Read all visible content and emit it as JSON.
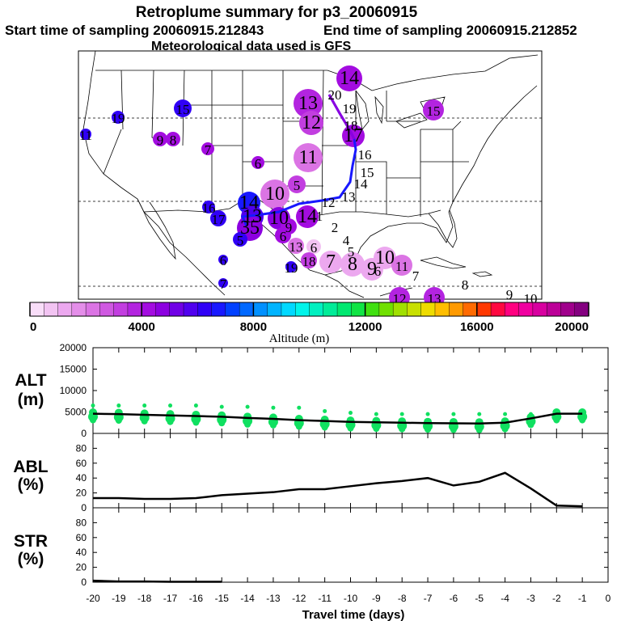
{
  "header": {
    "title": "Retroplume summary for p3_20060915",
    "start_time": "Start time of sampling 20060915.212843",
    "end_time": "End time of sampling 20060915.212852",
    "met_data": "Meteorological data used is GFS"
  },
  "colorbar": {
    "label": "Altitude (m)",
    "ticks": [
      "0",
      "4000",
      "8000",
      "12000",
      "16000",
      "20000"
    ],
    "colors": [
      "#f8ddf8",
      "#f2c3f2",
      "#eca8ef",
      "#e48ee9",
      "#db74e4",
      "#cf59e1",
      "#c23ee0",
      "#b324e0",
      "#a30ce0",
      "#8c00e0",
      "#7000e6",
      "#5000ee",
      "#3000f6",
      "#1818ff",
      "#0040ff",
      "#0068ff",
      "#0090ff",
      "#00b4ff",
      "#00d8ff",
      "#00f4ea",
      "#00f0c0",
      "#00ec98",
      "#00e870",
      "#10e444",
      "#40e010",
      "#70e000",
      "#a0e000",
      "#c8e000",
      "#eedc00",
      "#ffbe00",
      "#ff9a00",
      "#ff6a00",
      "#ff3800",
      "#ff0840",
      "#ff0080",
      "#f000a0",
      "#d800a0",
      "#bc0098",
      "#a0008c",
      "#840080"
    ]
  },
  "map": {
    "labels": [
      {
        "t": "14",
        "x": 432,
        "y": 97,
        "r": 16,
        "c": "#a30ce0"
      },
      {
        "t": "20",
        "x": 414,
        "y": 116,
        "r": 0,
        "c": "#a30ce0"
      },
      {
        "t": "13",
        "x": 381,
        "y": 128,
        "r": 18,
        "c": "#b324e0"
      },
      {
        "t": "19",
        "x": 432,
        "y": 133,
        "r": 0,
        "c": "#b324e0"
      },
      {
        "t": "15",
        "x": 536,
        "y": 136,
        "r": 13,
        "c": "#b324e0"
      },
      {
        "t": "15",
        "x": 226,
        "y": 134,
        "r": 11,
        "c": "#3000f6"
      },
      {
        "t": "19",
        "x": 146,
        "y": 145,
        "r": 8,
        "c": "#3000f6"
      },
      {
        "t": "12",
        "x": 385,
        "y": 152,
        "r": 15,
        "c": "#c23ee0"
      },
      {
        "t": "18",
        "x": 434,
        "y": 154,
        "r": 0,
        "c": "#c23ee0"
      },
      {
        "t": "17",
        "x": 437,
        "y": 168,
        "r": 14,
        "c": "#a30ce0"
      },
      {
        "t": "11",
        "x": 106,
        "y": 166,
        "r": 7,
        "c": "#3000f6"
      },
      {
        "t": "9",
        "x": 198,
        "y": 172,
        "r": 9,
        "c": "#a30ce0"
      },
      {
        "t": "8",
        "x": 214,
        "y": 172,
        "r": 9,
        "c": "#a30ce0"
      },
      {
        "t": "7",
        "x": 257,
        "y": 184,
        "r": 8,
        "c": "#a30ce0"
      },
      {
        "t": "16",
        "x": 451,
        "y": 190,
        "r": 0,
        "c": "#a30ce0"
      },
      {
        "t": "11",
        "x": 381,
        "y": 195,
        "r": 18,
        "c": "#db74e4"
      },
      {
        "t": "6",
        "x": 319,
        "y": 201,
        "r": 8,
        "c": "#a30ce0"
      },
      {
        "t": "15",
        "x": 454,
        "y": 212,
        "r": 0,
        "c": "#a30ce0"
      },
      {
        "t": "14",
        "x": 446,
        "y": 226,
        "r": 0,
        "c": "#a30ce0"
      },
      {
        "t": "5",
        "x": 367,
        "y": 228,
        "r": 11,
        "c": "#c23ee0"
      },
      {
        "t": "10",
        "x": 340,
        "y": 240,
        "r": 18,
        "c": "#db74e4"
      },
      {
        "t": "13",
        "x": 431,
        "y": 242,
        "r": 0,
        "c": "#a30ce0"
      },
      {
        "t": "12",
        "x": 406,
        "y": 249,
        "r": 0,
        "c": "#a30ce0"
      },
      {
        "t": "14",
        "x": 308,
        "y": 251,
        "r": 14,
        "c": "#1818ff"
      },
      {
        "t": "16",
        "x": 258,
        "y": 256,
        "r": 8,
        "c": "#3000f6"
      },
      {
        "t": "1",
        "x": 395,
        "y": 266,
        "r": 0,
        "c": "#a30ce0"
      },
      {
        "t": "17",
        "x": 270,
        "y": 270,
        "r": 10,
        "c": "#3000f6"
      },
      {
        "t": "13",
        "x": 312,
        "y": 268,
        "r": 14,
        "c": "#5000ee"
      },
      {
        "t": "10",
        "x": 345,
        "y": 270,
        "r": 14,
        "c": "#8c00e0"
      },
      {
        "t": "14",
        "x": 380,
        "y": 268,
        "r": 14,
        "c": "#a30ce0"
      },
      {
        "t": "2",
        "x": 414,
        "y": 280,
        "r": 0,
        "c": "#a30ce0"
      },
      {
        "t": "35",
        "x": 309,
        "y": 282,
        "r": 16,
        "c": "#8c00e0"
      },
      {
        "t": "9",
        "x": 357,
        "y": 280,
        "r": 10,
        "c": "#a30ce0"
      },
      {
        "t": "6",
        "x": 350,
        "y": 291,
        "r": 10,
        "c": "#a30ce0"
      },
      {
        "t": "4",
        "x": 428,
        "y": 296,
        "r": 0,
        "c": "#a30ce0"
      },
      {
        "t": "5",
        "x": 297,
        "y": 296,
        "r": 9,
        "c": "#3000f6"
      },
      {
        "t": "13",
        "x": 366,
        "y": 304,
        "r": 10,
        "c": "#db74e4"
      },
      {
        "t": "6",
        "x": 388,
        "y": 305,
        "r": 9,
        "c": "#f2c3f2"
      },
      {
        "t": "5",
        "x": 434,
        "y": 310,
        "r": 0,
        "c": "#e48ee9"
      },
      {
        "t": "18",
        "x": 382,
        "y": 322,
        "r": 10,
        "c": "#c23ee0"
      },
      {
        "t": "7",
        "x": 409,
        "y": 324,
        "r": 14,
        "c": "#eca8ef"
      },
      {
        "t": "8",
        "x": 436,
        "y": 327,
        "r": 15,
        "c": "#eca8ef"
      },
      {
        "t": "10",
        "x": 476,
        "y": 319,
        "r": 14,
        "c": "#eca8ef"
      },
      {
        "t": "9",
        "x": 460,
        "y": 333,
        "r": 14,
        "c": "#eca8ef"
      },
      {
        "t": "6",
        "x": 467,
        "y": 334,
        "r": 0,
        "c": "#eca8ef"
      },
      {
        "t": "11",
        "x": 497,
        "y": 328,
        "r": 13,
        "c": "#db74e4"
      },
      {
        "t": "6",
        "x": 276,
        "y": 321,
        "r": 6,
        "c": "#3000f6"
      },
      {
        "t": "19",
        "x": 360,
        "y": 330,
        "r": 7,
        "c": "#3000f6"
      },
      {
        "t": "7",
        "x": 514,
        "y": 340,
        "r": 0,
        "c": "#c23ee0"
      },
      {
        "t": "7",
        "x": 276,
        "y": 350,
        "r": 6,
        "c": "#3000f6"
      },
      {
        "t": "8",
        "x": 575,
        "y": 351,
        "r": 0,
        "c": "#c23ee0"
      },
      {
        "t": "12",
        "x": 494,
        "y": 368,
        "r": 13,
        "c": "#b324e0"
      },
      {
        "t": "13",
        "x": 537,
        "y": 368,
        "r": 13,
        "c": "#b324e0"
      },
      {
        "t": "9",
        "x": 630,
        "y": 363,
        "r": 0,
        "c": "#c23ee0"
      },
      {
        "t": "10",
        "x": 656,
        "y": 368,
        "r": 0,
        "c": "#c23ee0"
      }
    ]
  },
  "chart_data": [
    {
      "type": "scatter",
      "panel": "ALT",
      "ylabel": "ALT (m)",
      "ylim": [
        0,
        20000
      ],
      "yticks": [
        "20000",
        "15000",
        "10000",
        "5000",
        "0"
      ],
      "x": [
        -20,
        -19,
        -18,
        -17,
        -16,
        -15,
        -14,
        -13,
        -12,
        -11,
        -10,
        -9,
        -8,
        -7,
        -6,
        -5,
        -4,
        -3,
        -2,
        -1
      ],
      "mean_line": [
        4600,
        4500,
        4350,
        4200,
        4050,
        3900,
        3600,
        3400,
        3100,
        2900,
        2700,
        2600,
        2500,
        2400,
        2350,
        2300,
        2500,
        3500,
        4600,
        4600
      ],
      "upper_points": [
        6500,
        6500,
        6500,
        6500,
        6500,
        6200,
        6200,
        6000,
        6000,
        5200,
        4800,
        4500,
        4500,
        4500,
        4500,
        4500,
        4500,
        4500,
        5000,
        4800
      ]
    },
    {
      "type": "line",
      "panel": "ABL",
      "ylabel": "ABL (%)",
      "ylim": [
        0,
        100
      ],
      "yticks": [
        "80",
        "60",
        "40",
        "20",
        "0"
      ],
      "x": [
        -20,
        -19,
        -18,
        -17,
        -16,
        -15,
        -14,
        -13,
        -12,
        -11,
        -10,
        -9,
        -8,
        -7,
        -6,
        -5,
        -4,
        -3,
        -2,
        -1
      ],
      "values": [
        13,
        13,
        12,
        12,
        13,
        17,
        19,
        21,
        25,
        25,
        29,
        33,
        36,
        40,
        30,
        35,
        47,
        26,
        3,
        2
      ]
    },
    {
      "type": "line",
      "panel": "STR",
      "ylabel": "STR (%)",
      "ylim": [
        0,
        100
      ],
      "yticks": [
        "80",
        "60",
        "40",
        "20",
        "0"
      ],
      "x": [
        -20,
        -19,
        -18,
        -17,
        -16,
        -15
      ],
      "values": [
        2,
        1,
        1,
        0.5,
        0.5,
        0.5
      ]
    }
  ],
  "xaxis": {
    "label": "Travel time (days)",
    "ticks": [
      "-20",
      "-19",
      "-18",
      "-17",
      "-16",
      "-15",
      "-14",
      "-13",
      "-12",
      "-11",
      "-10",
      "-9",
      "-8",
      "-7",
      "-6",
      "-5",
      "-4",
      "-3",
      "-2",
      "-1",
      "0"
    ]
  }
}
